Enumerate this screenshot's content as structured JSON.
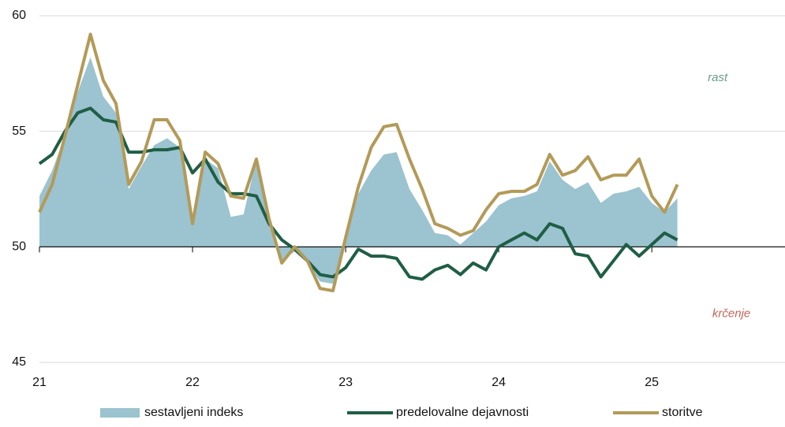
{
  "chart_data": {
    "type": "line",
    "x": [
      21,
      21.083,
      21.167,
      21.25,
      21.333,
      21.417,
      21.5,
      21.583,
      21.667,
      21.75,
      21.833,
      21.917,
      22,
      22.083,
      22.167,
      22.25,
      22.333,
      22.417,
      22.5,
      22.583,
      22.667,
      22.75,
      22.833,
      22.917,
      23,
      23.083,
      23.167,
      23.25,
      23.333,
      23.417,
      23.5,
      23.583,
      23.667,
      23.75,
      23.833,
      23.917,
      24,
      24.083,
      24.167,
      24.25,
      24.333,
      24.417,
      24.5,
      24.583,
      24.667,
      24.75,
      24.833,
      24.917,
      25,
      25.083,
      25.167
    ],
    "series": [
      {
        "name": "sestavljeni indeks",
        "kind": "area",
        "color": "#9bc3d0",
        "values": [
          52.2,
          53.3,
          54.8,
          56.7,
          58.2,
          56.5,
          55.8,
          52.5,
          53.5,
          54.4,
          54.7,
          54.3,
          51.1,
          53.8,
          53.4,
          51.3,
          51.4,
          53.8,
          50.9,
          49.4,
          49.8,
          49.3,
          48.5,
          48.4,
          50.2,
          52.3,
          53.3,
          54.0,
          54.1,
          52.5,
          51.6,
          50.6,
          50.5,
          50.1,
          50.6,
          51.1,
          51.8,
          52.1,
          52.2,
          52.4,
          53.7,
          52.9,
          52.5,
          52.8,
          51.9,
          52.3,
          52.4,
          52.6,
          51.9,
          51.5,
          52.1
        ]
      },
      {
        "name": "predelovalne dejavnosti",
        "kind": "line",
        "color": "#1f5e45",
        "values": [
          53.6,
          54.0,
          55.0,
          55.8,
          56.0,
          55.5,
          55.4,
          54.1,
          54.1,
          54.2,
          54.2,
          54.3,
          53.2,
          53.8,
          52.8,
          52.3,
          52.3,
          52.2,
          51.0,
          50.3,
          49.9,
          49.4,
          48.8,
          48.7,
          49.1,
          49.9,
          49.6,
          49.6,
          49.5,
          48.7,
          48.6,
          49.0,
          49.2,
          48.8,
          49.3,
          49.0,
          50.0,
          50.3,
          50.6,
          50.3,
          51.0,
          50.8,
          49.7,
          49.6,
          48.7,
          49.4,
          50.1,
          49.6,
          50.1,
          50.6,
          50.3
        ]
      },
      {
        "name": "storitve",
        "kind": "line",
        "color": "#b39a58",
        "values": [
          51.5,
          52.7,
          54.8,
          57.0,
          59.2,
          57.2,
          56.2,
          52.7,
          53.7,
          55.5,
          55.5,
          54.6,
          51.0,
          54.1,
          53.6,
          52.2,
          52.1,
          53.8,
          51.2,
          49.3,
          50.0,
          49.4,
          48.2,
          48.1,
          50.4,
          52.6,
          54.3,
          55.2,
          55.3,
          53.8,
          52.5,
          51.0,
          50.8,
          50.5,
          50.7,
          51.6,
          52.3,
          52.4,
          52.4,
          52.7,
          54.0,
          53.1,
          53.3,
          53.9,
          52.9,
          53.1,
          53.1,
          53.8,
          52.2,
          51.5,
          52.7
        ]
      }
    ],
    "xlim": [
      21,
      25.87
    ],
    "xticks": [
      21,
      22,
      23,
      24,
      25
    ],
    "ylim": [
      45,
      60
    ],
    "yticks": [
      45,
      50,
      55,
      60
    ],
    "hline": 50,
    "grid": true,
    "legend": "bottom",
    "annotations": [
      {
        "text": "rast",
        "color": "#6a9e8c",
        "x": 25.43,
        "y": 57.3
      },
      {
        "text": "krčenje",
        "color": "#c0665a",
        "x": 25.52,
        "y": 47.1
      }
    ]
  }
}
